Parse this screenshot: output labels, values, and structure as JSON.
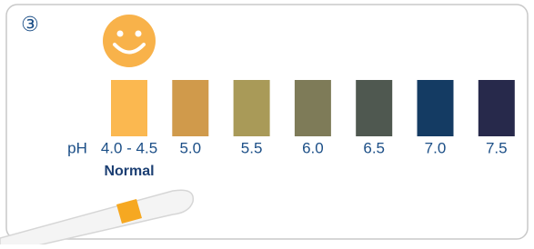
{
  "step": "③",
  "scale": {
    "prefix": "pH",
    "swatches": [
      {
        "label": "4.0 - 4.5",
        "color": "#fbb850"
      },
      {
        "label": "5.0",
        "color": "#d09a4b"
      },
      {
        "label": "5.5",
        "color": "#a99a58"
      },
      {
        "label": "6.0",
        "color": "#7e7b58"
      },
      {
        "label": "6.5",
        "color": "#4f5850"
      },
      {
        "label": "7.0",
        "color": "#143b63"
      },
      {
        "label": "7.5",
        "color": "#27294b"
      }
    ]
  },
  "note": "Normal"
}
